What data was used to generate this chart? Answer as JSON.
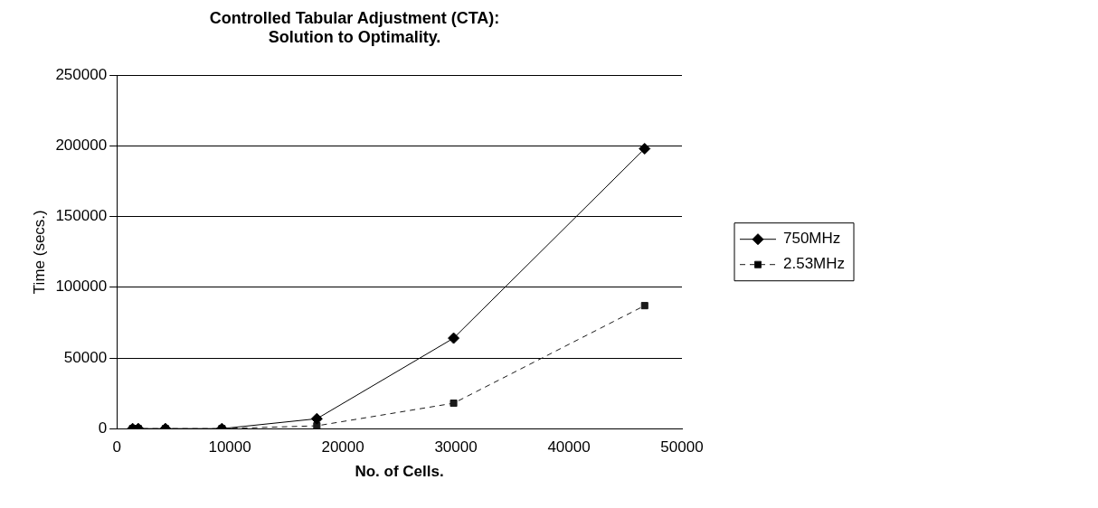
{
  "chart_data": {
    "type": "line",
    "title": [
      "Controlled Tabular Adjustment (CTA):",
      "Solution to Optimality."
    ],
    "xlabel": "No. of Cells.",
    "ylabel": "Time (secs.)",
    "x": [
      1400,
      1900,
      4300,
      9300,
      17700,
      29800,
      46700
    ],
    "series": [
      {
        "name": "750MHz",
        "color": "#000000",
        "marker": "diamond",
        "line_style": "solid",
        "values": [
          0,
          0,
          0,
          0,
          7000,
          64000,
          198000
        ]
      },
      {
        "name": "2.53MHz",
        "color": "#1a1a1a",
        "marker": "square",
        "line_style": "dashed",
        "values": [
          0,
          0,
          0,
          0,
          2000,
          18000,
          87000
        ]
      }
    ],
    "xlim": [
      0,
      50000
    ],
    "xticks": [
      0,
      10000,
      20000,
      30000,
      40000,
      50000
    ],
    "ylim": [
      0,
      250000
    ],
    "yticks": [
      0,
      50000,
      100000,
      150000,
      200000,
      250000
    ],
    "grid": "y",
    "legend": "right"
  }
}
